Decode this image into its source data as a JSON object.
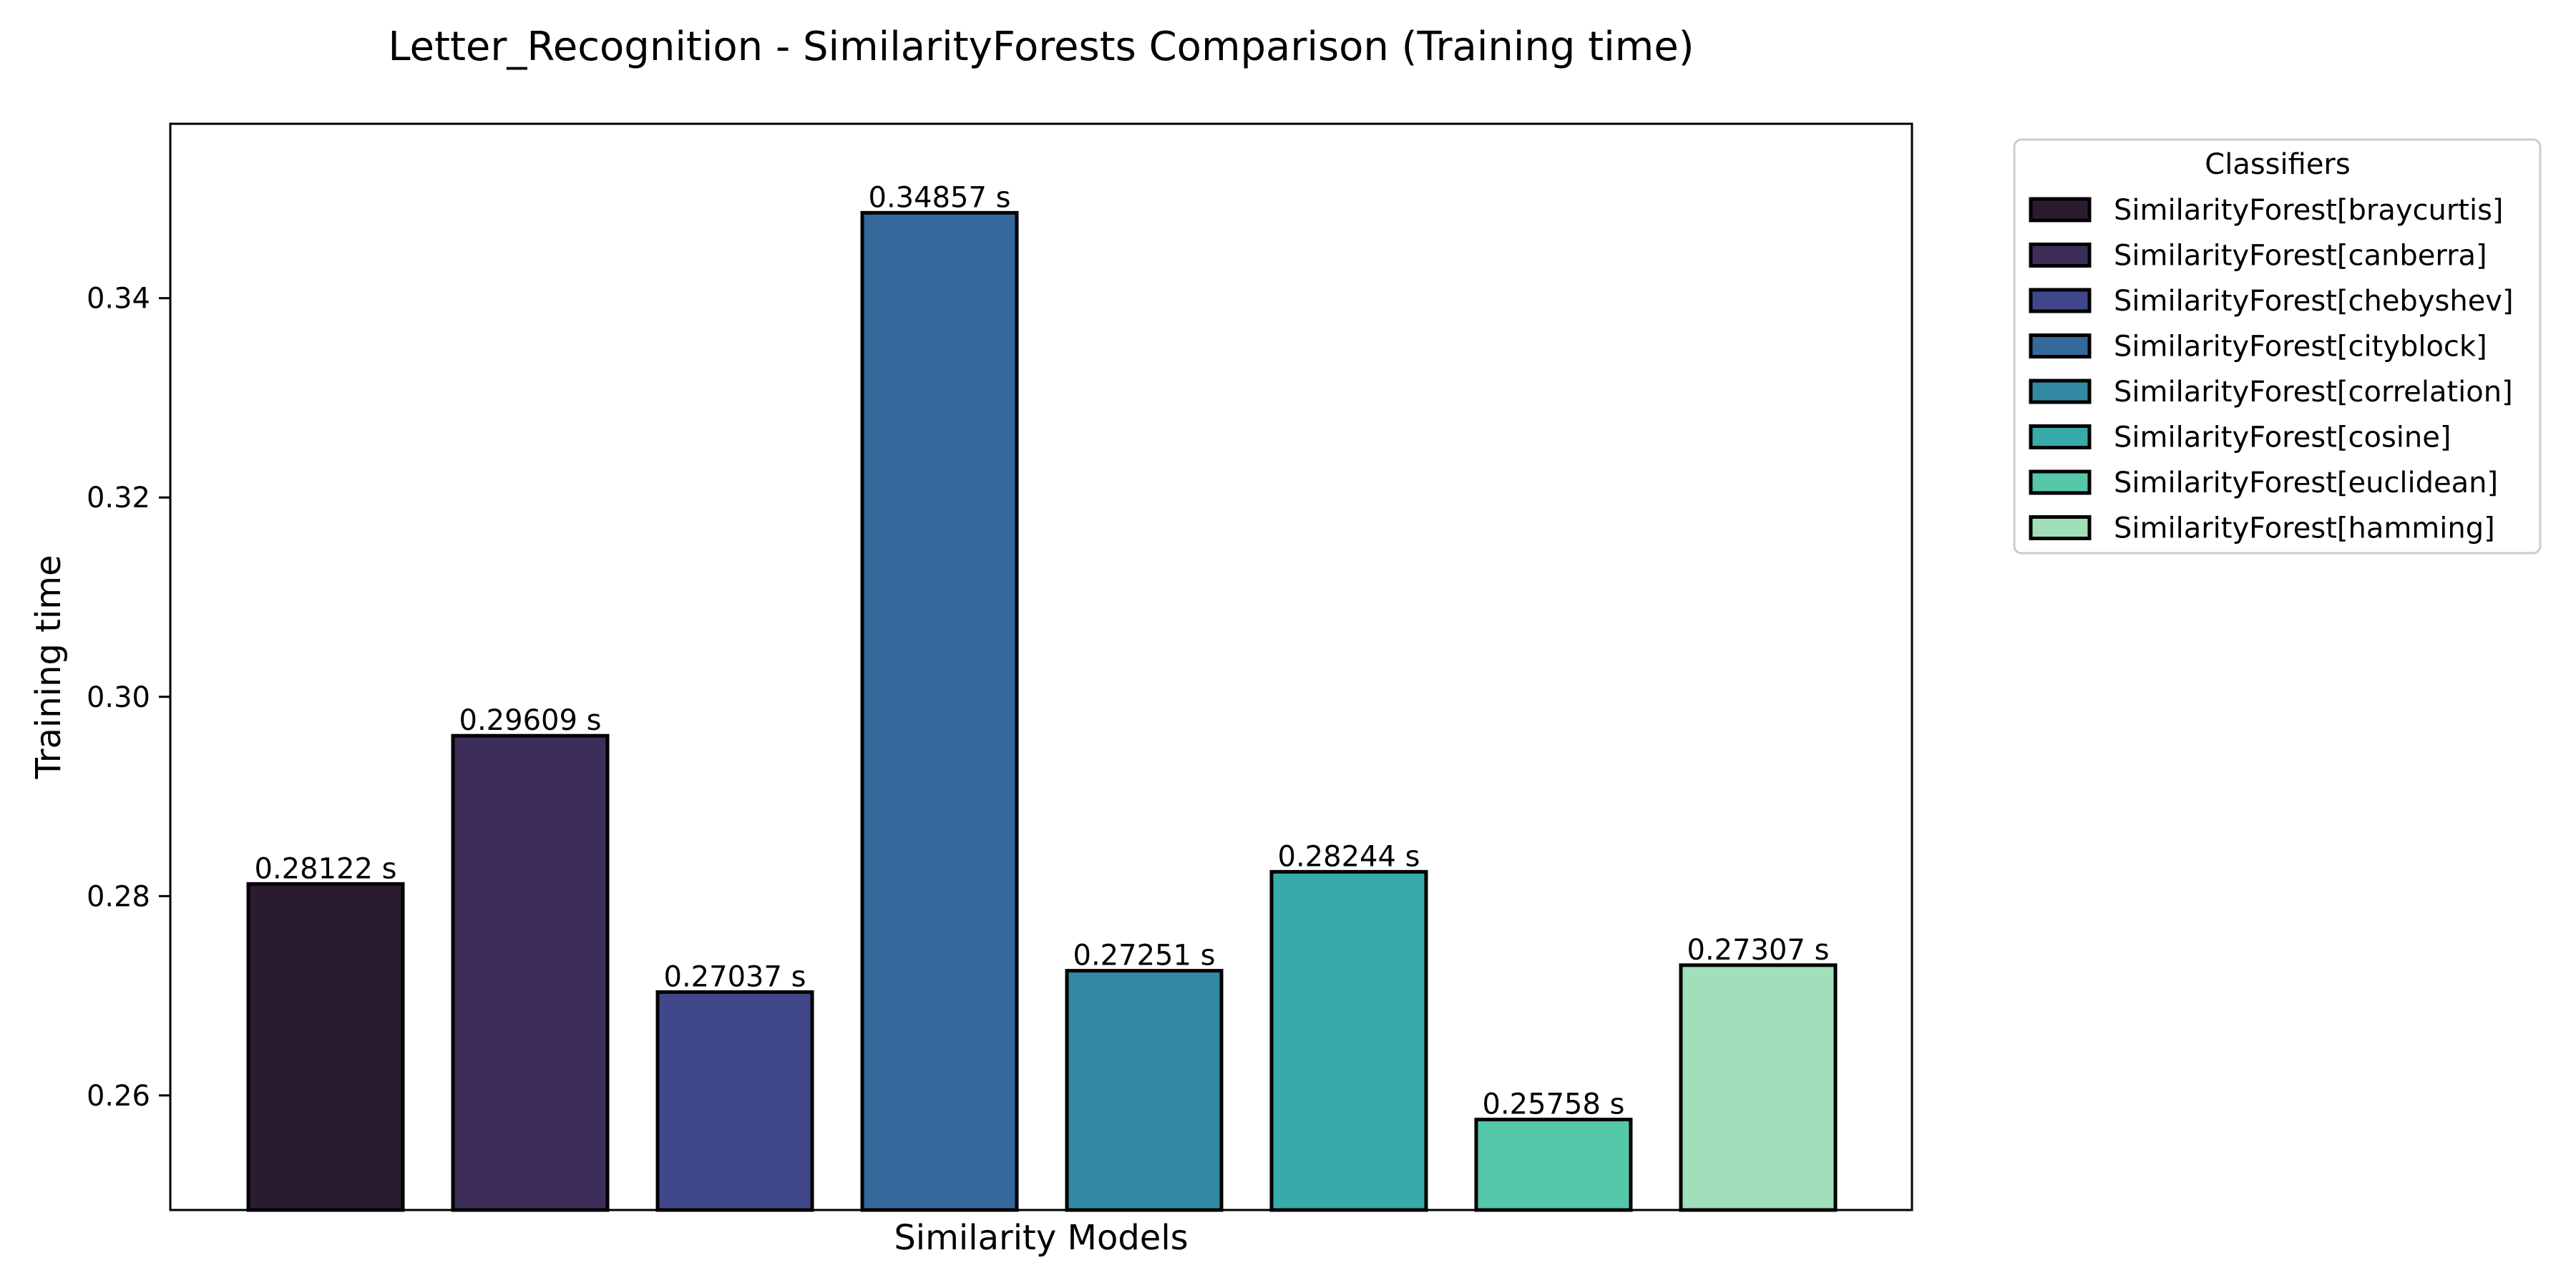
{
  "chart_data": {
    "type": "bar",
    "title": "Letter_Recognition - SimilarityForests Comparison (Training time)",
    "xlabel": "Similarity Models",
    "ylabel": "Training time",
    "ylim": [
      0.2485,
      0.3575
    ],
    "yticks": [
      0.26,
      0.28,
      0.3,
      0.32,
      0.34
    ],
    "ytick_labels": [
      "0.26",
      "0.28",
      "0.30",
      "0.32",
      "0.34"
    ],
    "grid": false,
    "legend_title": "Classifiers",
    "legend_position": "outside-top-right",
    "categories": [
      "SimilarityForest[braycurtis]",
      "SimilarityForest[canberra]",
      "SimilarityForest[chebyshev]",
      "SimilarityForest[cityblock]",
      "SimilarityForest[correlation]",
      "SimilarityForest[cosine]",
      "SimilarityForest[euclidean]",
      "SimilarityForest[hamming]"
    ],
    "values": [
      0.28122,
      0.29609,
      0.27037,
      0.34857,
      0.27251,
      0.28244,
      0.25758,
      0.27307
    ],
    "data_labels": [
      "0.28122 s",
      "0.29609 s",
      "0.27037 s",
      "0.34857 s",
      "0.27251 s",
      "0.28244 s",
      "0.25758 s",
      "0.27307 s"
    ],
    "colors": [
      "#2a1b2f",
      "#3c2e58",
      "#40478a",
      "#35689b",
      "#3289a2",
      "#38aaaa",
      "#54c8a9",
      "#a0dfb9"
    ],
    "edge_color": "#000000"
  }
}
